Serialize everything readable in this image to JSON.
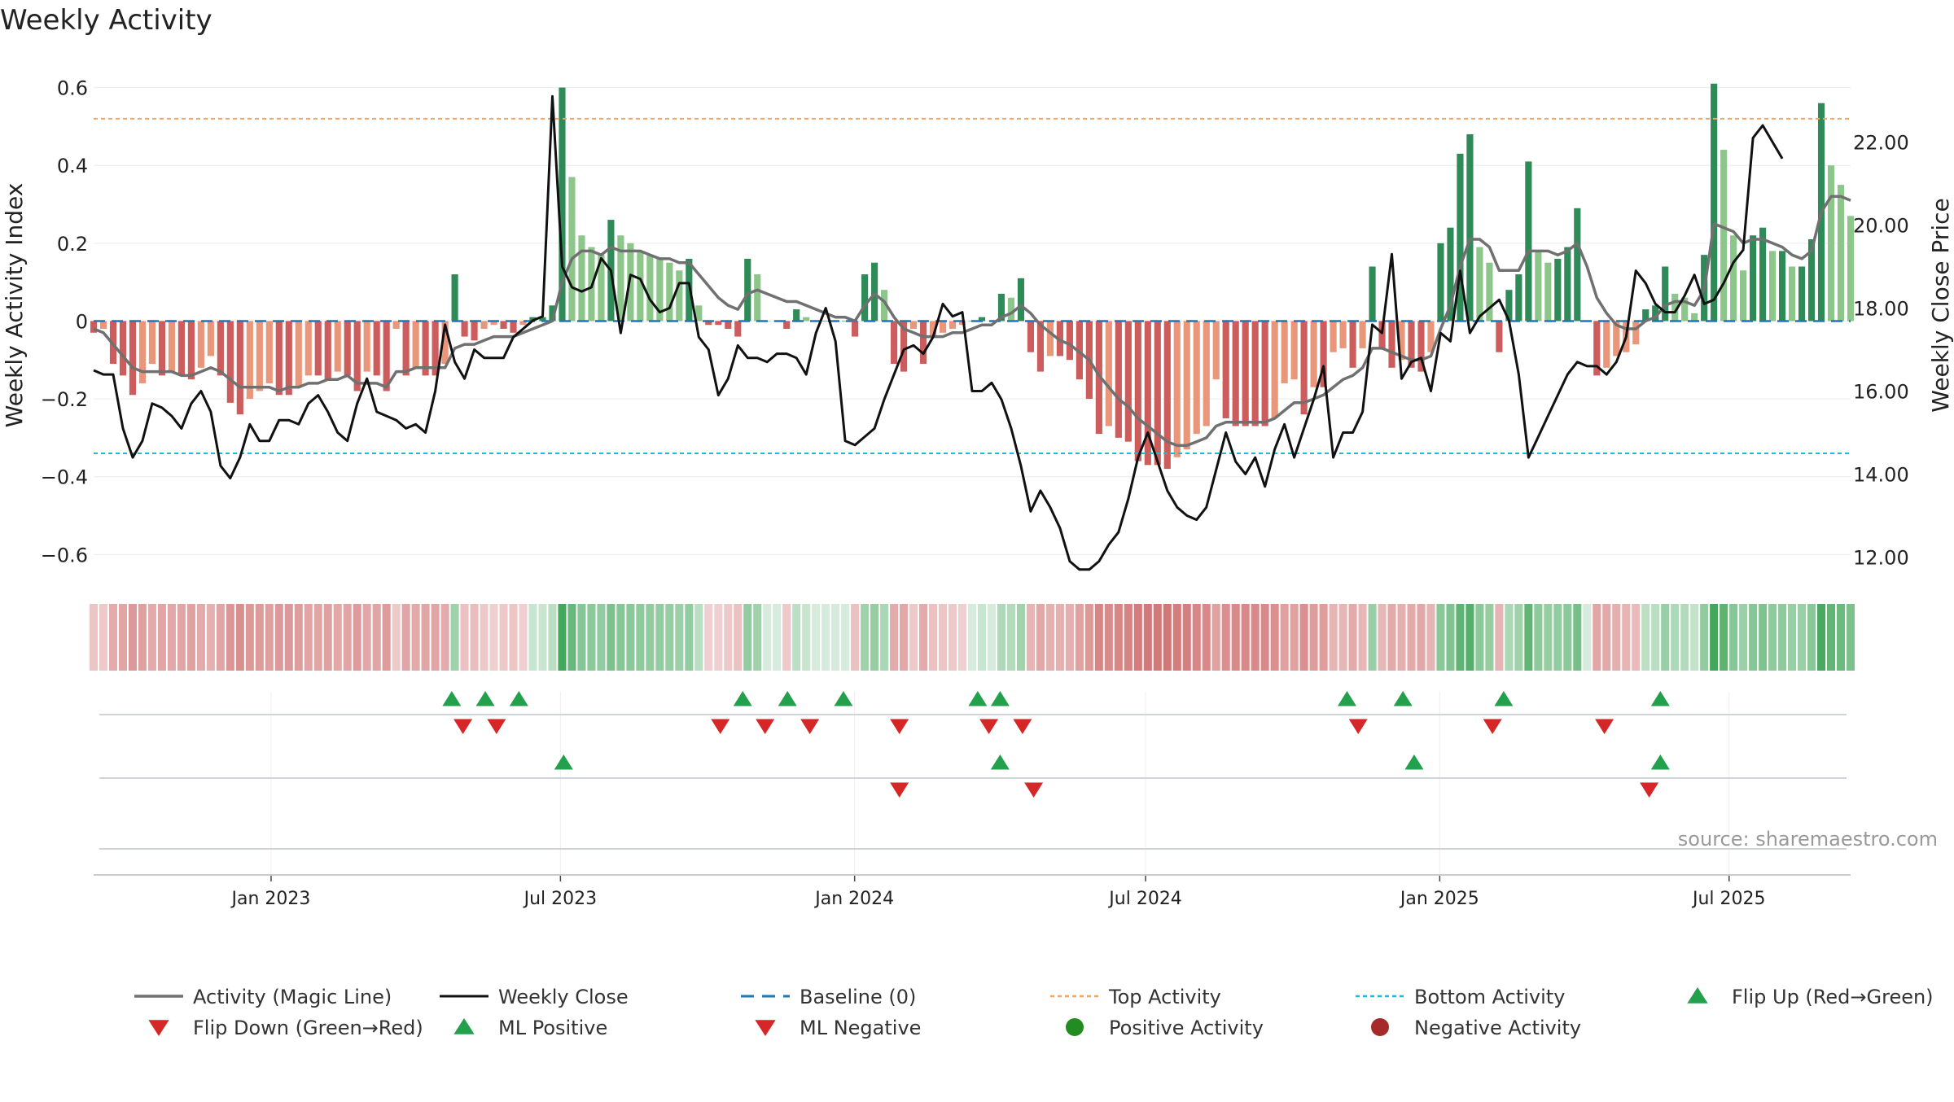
{
  "chart_data": {
    "type": "bar",
    "title": "Weekly Activity",
    "ylabel": "Weekly Activity Index",
    "y2label": "Weekly Close Price",
    "ylim": [
      -0.66,
      0.62
    ],
    "y2lim": [
      11.5,
      23.5
    ],
    "x_start": "2022-09-12",
    "x_end": "2025-09-15",
    "yticks": [
      {
        "v": 0.6,
        "label": "0.6"
      },
      {
        "v": 0.4,
        "label": "0.4"
      },
      {
        "v": 0.2,
        "label": "0.2"
      },
      {
        "v": 0,
        "label": "0"
      },
      {
        "v": -0.2,
        "label": "−0.2"
      },
      {
        "v": -0.4,
        "label": "−0.4"
      },
      {
        "v": -0.6,
        "label": "−0.6"
      }
    ],
    "y2ticks": [
      {
        "v": 22,
        "label": "22.00"
      },
      {
        "v": 20,
        "label": "20.00"
      },
      {
        "v": 18,
        "label": "18.00"
      },
      {
        "v": 16,
        "label": "16.00"
      },
      {
        "v": 14,
        "label": "14.00"
      },
      {
        "v": 12,
        "label": "12.00"
      }
    ],
    "xticks": [
      {
        "date": "2023-01-01",
        "label": "Jan 2023"
      },
      {
        "date": "2023-07-01",
        "label": "Jul 2023"
      },
      {
        "date": "2024-01-01",
        "label": "Jan 2024"
      },
      {
        "date": "2024-07-01",
        "label": "Jul 2024"
      },
      {
        "date": "2025-01-01",
        "label": "Jan 2025"
      },
      {
        "date": "2025-07-01",
        "label": "Jul 2025"
      }
    ],
    "top_activity": 0.52,
    "bottom_activity": -0.34,
    "activity": [
      -0.03,
      -0.02,
      -0.11,
      -0.14,
      -0.19,
      -0.16,
      -0.11,
      -0.14,
      -0.13,
      -0.14,
      -0.15,
      -0.12,
      -0.09,
      -0.14,
      -0.21,
      -0.24,
      -0.2,
      -0.18,
      -0.16,
      -0.19,
      -0.19,
      -0.17,
      -0.14,
      -0.14,
      -0.15,
      -0.13,
      -0.14,
      -0.18,
      -0.13,
      -0.14,
      -0.18,
      -0.02,
      -0.14,
      -0.12,
      -0.14,
      -0.14,
      -0.11,
      0.12,
      -0.04,
      -0.05,
      -0.02,
      -0.01,
      -0.02,
      -0.03,
      -0.01,
      0.01,
      0.01,
      0.04,
      0.6,
      0.37,
      0.22,
      0.19,
      0.17,
      0.26,
      0.22,
      0.2,
      0.18,
      0.17,
      0.16,
      0.15,
      0.13,
      0.16,
      0.04,
      -0.01,
      -0.01,
      -0.02,
      -0.04,
      0.16,
      0.12,
      0.0,
      0.0,
      -0.02,
      0.03,
      0.01,
      0.0,
      0.0,
      0.0,
      0.0,
      -0.04,
      0.12,
      0.15,
      0.08,
      -0.11,
      -0.13,
      -0.02,
      -0.11,
      -0.04,
      -0.03,
      -0.02,
      -0.01,
      0.0,
      0.01,
      0.0,
      0.07,
      0.06,
      0.11,
      -0.08,
      -0.13,
      -0.09,
      -0.09,
      -0.1,
      -0.15,
      -0.2,
      -0.29,
      -0.27,
      -0.3,
      -0.31,
      -0.36,
      -0.37,
      -0.37,
      -0.38,
      -0.35,
      -0.33,
      -0.29,
      -0.27,
      -0.15,
      -0.25,
      -0.27,
      -0.27,
      -0.27,
      -0.27,
      -0.25,
      -0.16,
      -0.15,
      -0.24,
      -0.17,
      -0.17,
      -0.08,
      -0.07,
      -0.12,
      -0.07,
      0.14,
      -0.07,
      -0.12,
      -0.1,
      -0.12,
      -0.13,
      -0.08,
      0.2,
      0.24,
      0.43,
      0.48,
      0.19,
      0.15,
      -0.08,
      0.08,
      0.12,
      0.41,
      0.18,
      0.15,
      0.16,
      0.19,
      0.29,
      0.0,
      -0.14,
      -0.12,
      -0.09,
      -0.08,
      -0.06,
      0.03,
      0.04,
      0.14,
      0.07,
      0.06,
      0.02,
      0.17,
      0.61,
      0.44,
      0.22,
      0.13,
      0.22,
      0.24,
      0.18,
      0.18,
      0.14,
      0.14,
      0.21,
      0.56,
      0.4,
      0.35,
      0.27
    ],
    "magic_line": [
      -0.02,
      -0.03,
      -0.06,
      -0.09,
      -0.12,
      -0.13,
      -0.13,
      -0.13,
      -0.13,
      -0.14,
      -0.14,
      -0.13,
      -0.12,
      -0.13,
      -0.15,
      -0.17,
      -0.17,
      -0.17,
      -0.17,
      -0.18,
      -0.17,
      -0.17,
      -0.16,
      -0.16,
      -0.15,
      -0.15,
      -0.14,
      -0.16,
      -0.16,
      -0.16,
      -0.17,
      -0.13,
      -0.13,
      -0.12,
      -0.12,
      -0.12,
      -0.12,
      -0.07,
      -0.06,
      -0.06,
      -0.05,
      -0.04,
      -0.04,
      -0.04,
      -0.03,
      -0.02,
      -0.01,
      0.0,
      0.1,
      0.16,
      0.18,
      0.18,
      0.17,
      0.19,
      0.18,
      0.18,
      0.18,
      0.17,
      0.16,
      0.16,
      0.15,
      0.15,
      0.12,
      0.09,
      0.06,
      0.04,
      0.03,
      0.07,
      0.08,
      0.07,
      0.06,
      0.05,
      0.05,
      0.04,
      0.03,
      0.02,
      0.01,
      0.01,
      0.0,
      0.04,
      0.07,
      0.05,
      0.01,
      -0.02,
      -0.03,
      -0.04,
      -0.04,
      -0.04,
      -0.03,
      -0.03,
      -0.02,
      -0.01,
      -0.01,
      0.01,
      0.02,
      0.04,
      0.02,
      -0.01,
      -0.03,
      -0.05,
      -0.06,
      -0.08,
      -0.1,
      -0.14,
      -0.17,
      -0.2,
      -0.22,
      -0.25,
      -0.27,
      -0.29,
      -0.31,
      -0.32,
      -0.32,
      -0.31,
      -0.3,
      -0.27,
      -0.26,
      -0.26,
      -0.26,
      -0.26,
      -0.26,
      -0.25,
      -0.23,
      -0.21,
      -0.21,
      -0.2,
      -0.19,
      -0.17,
      -0.15,
      -0.14,
      -0.12,
      -0.07,
      -0.07,
      -0.08,
      -0.09,
      -0.1,
      -0.1,
      -0.09,
      -0.02,
      0.04,
      0.14,
      0.21,
      0.21,
      0.19,
      0.13,
      0.13,
      0.13,
      0.18,
      0.18,
      0.18,
      0.17,
      0.18,
      0.2,
      0.14,
      0.06,
      0.02,
      -0.01,
      -0.02,
      -0.02,
      0.0,
      0.01,
      0.04,
      0.05,
      0.05,
      0.04,
      0.08,
      0.25,
      0.24,
      0.23,
      0.2,
      0.21,
      0.21,
      0.2,
      0.19,
      0.17,
      0.16,
      0.18,
      0.28,
      0.32,
      0.32,
      0.31
    ],
    "weekly_close": [
      16.5,
      16.4,
      16.4,
      15.1,
      14.4,
      14.8,
      15.7,
      15.6,
      15.4,
      15.1,
      15.7,
      16.0,
      15.5,
      14.2,
      13.9,
      14.4,
      15.2,
      14.8,
      14.8,
      15.3,
      15.3,
      15.2,
      15.7,
      15.9,
      15.5,
      15.0,
      14.8,
      15.7,
      16.3,
      15.5,
      15.4,
      15.3,
      15.1,
      15.2,
      15.0,
      16.0,
      17.6,
      16.7,
      16.3,
      17.0,
      16.8,
      16.8,
      16.8,
      17.3,
      17.5,
      17.7,
      17.8,
      23.1,
      19.0,
      18.5,
      18.4,
      18.5,
      19.2,
      18.9,
      17.4,
      18.8,
      18.7,
      18.2,
      17.9,
      18.0,
      18.6,
      18.6,
      17.3,
      17.0,
      15.9,
      16.3,
      17.1,
      16.8,
      16.8,
      16.7,
      16.9,
      16.9,
      16.8,
      16.4,
      17.4,
      18.0,
      17.2,
      14.8,
      14.7,
      14.9,
      15.1,
      15.8,
      16.4,
      17.0,
      17.1,
      16.9,
      17.3,
      18.1,
      17.8,
      17.9,
      16.0,
      16.0,
      16.2,
      15.8,
      15.1,
      14.2,
      13.1,
      13.6,
      13.2,
      12.7,
      11.9,
      11.7,
      11.7,
      11.9,
      12.3,
      12.6,
      13.4,
      14.4,
      15.0,
      14.3,
      13.6,
      13.2,
      13.0,
      12.9,
      13.2,
      14.1,
      15.0,
      14.3,
      14.0,
      14.4,
      13.7,
      14.6,
      15.2,
      14.4,
      15.1,
      15.8,
      16.6,
      14.4,
      15.0,
      15.0,
      15.5,
      17.6,
      17.4,
      19.3,
      16.3,
      16.7,
      16.8,
      16.0,
      17.4,
      17.2,
      18.9,
      17.4,
      17.8,
      18.0,
      18.2,
      17.7,
      16.4,
      14.4,
      14.9,
      15.4,
      15.9,
      16.4,
      16.7,
      16.6,
      16.6,
      16.4,
      16.7,
      17.3,
      18.9,
      18.6,
      18.1,
      17.9,
      17.9,
      18.3,
      18.8,
      18.1,
      18.2,
      18.6,
      19.1,
      19.4,
      22.1,
      22.4,
      22.0,
      21.6
    ],
    "flip_row1": [
      {
        "date": "2023-04-24",
        "dir": "up"
      },
      {
        "date": "2023-05-01",
        "dir": "down"
      },
      {
        "date": "2023-05-15",
        "dir": "up"
      },
      {
        "date": "2023-05-22",
        "dir": "down"
      },
      {
        "date": "2023-06-05",
        "dir": "up"
      },
      {
        "date": "2023-10-09",
        "dir": "down"
      },
      {
        "date": "2023-10-23",
        "dir": "up"
      },
      {
        "date": "2023-11-06",
        "dir": "down"
      },
      {
        "date": "2023-11-20",
        "dir": "up"
      },
      {
        "date": "2023-12-04",
        "dir": "down"
      },
      {
        "date": "2023-12-25",
        "dir": "up"
      },
      {
        "date": "2024-01-29",
        "dir": "down"
      },
      {
        "date": "2024-03-18",
        "dir": "up"
      },
      {
        "date": "2024-03-25",
        "dir": "down"
      },
      {
        "date": "2024-04-01",
        "dir": "up"
      },
      {
        "date": "2024-04-15",
        "dir": "down"
      },
      {
        "date": "2024-11-04",
        "dir": "up"
      },
      {
        "date": "2024-11-11",
        "dir": "down"
      },
      {
        "date": "2024-12-09",
        "dir": "up"
      },
      {
        "date": "2025-02-03",
        "dir": "down"
      },
      {
        "date": "2025-02-10",
        "dir": "up"
      },
      {
        "date": "2025-04-14",
        "dir": "down"
      },
      {
        "date": "2025-05-19",
        "dir": "up"
      }
    ],
    "flip_row2": [
      {
        "date": "2023-07-03",
        "dir": "up"
      },
      {
        "date": "2024-01-29",
        "dir": "down"
      },
      {
        "date": "2024-04-01",
        "dir": "up"
      },
      {
        "date": "2024-04-22",
        "dir": "down"
      },
      {
        "date": "2024-12-16",
        "dir": "up"
      },
      {
        "date": "2025-05-12",
        "dir": "down"
      },
      {
        "date": "2025-05-19",
        "dir": "up"
      }
    ],
    "legend": [
      {
        "key": "magic",
        "label": "Activity (Magic Line)"
      },
      {
        "key": "close",
        "label": "Weekly Close"
      },
      {
        "key": "baseline",
        "label": "Baseline (0)"
      },
      {
        "key": "top",
        "label": "Top Activity"
      },
      {
        "key": "bottom",
        "label": "Bottom Activity"
      },
      {
        "key": "flip_up",
        "label": "Flip Up (Red→Green)"
      },
      {
        "key": "flip_down",
        "label": "Flip Down (Green→Red)"
      },
      {
        "key": "ml_pos",
        "label": "ML Positive"
      },
      {
        "key": "ml_neg",
        "label": "ML Negative"
      },
      {
        "key": "pos_act",
        "label": "Positive Activity"
      },
      {
        "key": "neg_act",
        "label": "Negative Activity"
      }
    ],
    "source": "source: sharemaestro.com",
    "colors": {
      "pos_strong": "#2e8b57",
      "pos_weak": "#8cc68a",
      "neg_strong": "#cd5c5c",
      "neg_weak": "#e9967a",
      "magic": "#707070",
      "close": "#111111",
      "baseline": "#1f77b4",
      "top": "#f4a460",
      "bottom": "#17becf",
      "flip_up": "#22a04b",
      "flip_down": "#d62728",
      "pos_dot": "#228b22",
      "neg_dot": "#a52a2a"
    }
  }
}
